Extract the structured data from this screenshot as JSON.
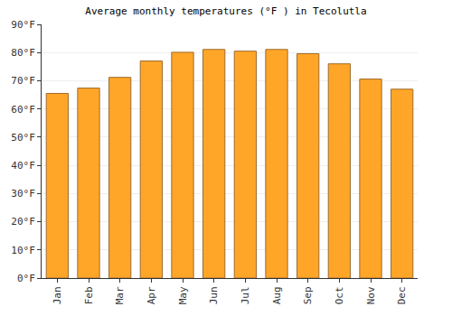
{
  "chart_data": {
    "type": "bar",
    "title": "Average monthly temperatures (°F ) in Tecolutla",
    "categories": [
      "Jan",
      "Feb",
      "Mar",
      "Apr",
      "May",
      "Jun",
      "Jul",
      "Aug",
      "Sep",
      "Oct",
      "Nov",
      "Dec"
    ],
    "values": [
      65.5,
      67.4,
      71.2,
      77,
      80.1,
      81.1,
      80.5,
      81.1,
      79.6,
      76,
      70.6,
      67
    ],
    "color": "#ffa629",
    "ylim": [
      0,
      90
    ],
    "yticks": [
      {
        "value": 0,
        "label": "0°F"
      },
      {
        "value": 10,
        "label": "10°F"
      },
      {
        "value": 20,
        "label": "20°F"
      },
      {
        "value": 30,
        "label": "30°F"
      },
      {
        "value": 40,
        "label": "40°F"
      },
      {
        "value": 50,
        "label": "50°F"
      },
      {
        "value": 60,
        "label": "60°F"
      },
      {
        "value": 70,
        "label": "70°F"
      },
      {
        "value": 80,
        "label": "80°F"
      },
      {
        "value": 90,
        "label": "90°F"
      }
    ],
    "grid": true
  }
}
